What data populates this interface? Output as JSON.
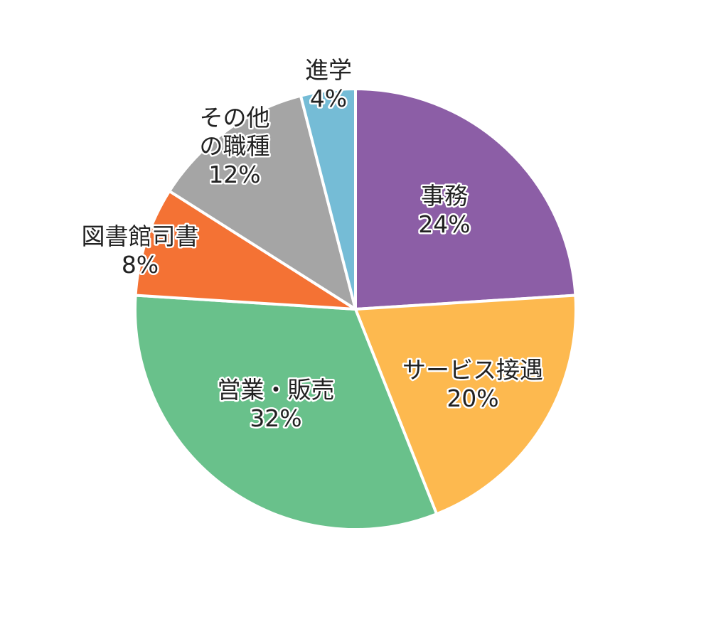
{
  "chart_data": {
    "type": "pie",
    "title": "",
    "start_angle_deg": 0,
    "direction": "clockwise",
    "slices": [
      {
        "label": "事務",
        "value": 24,
        "value_label": "24%",
        "color": "#8c5ea6"
      },
      {
        "label": "サービス接遇",
        "value": 20,
        "value_label": "20%",
        "color": "#fdb94f"
      },
      {
        "label": "営業・販売",
        "value": 32,
        "value_label": "32%",
        "color": "#69c18b"
      },
      {
        "label": "図書館司書",
        "value": 8,
        "value_label": "8%",
        "color": "#f47234"
      },
      {
        "label": "その他の職種",
        "value": 12,
        "value_label": "12%",
        "color": "#a5a5a5"
      },
      {
        "label": "進学",
        "value": 4,
        "value_label": "4%",
        "color": "#75bcd6"
      }
    ]
  }
}
